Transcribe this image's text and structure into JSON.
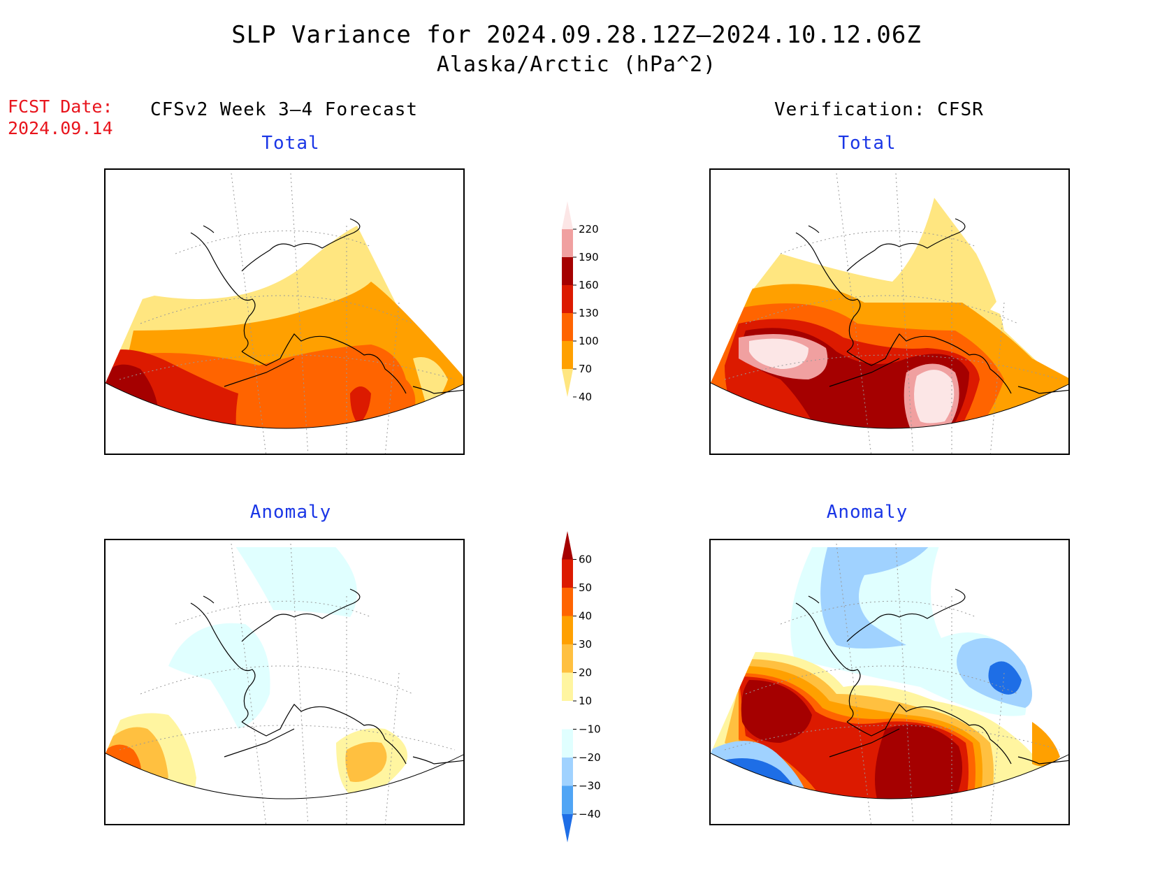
{
  "title": "SLP Variance for 2024.09.28.12Z–2024.10.12.06Z",
  "subtitle": "Alaska/Arctic (hPa^2)",
  "fcst_label": "FCST Date:",
  "fcst_date": "2024.09.14",
  "left_header": "CFSv2 Week 3–4 Forecast",
  "right_header": "Verification: CFSR",
  "panels": {
    "fcst_total": "Total",
    "verif_total": "Total",
    "fcst_anom": "Anomaly",
    "verif_anom": "Anomaly"
  },
  "total_scale": {
    "labels": [
      "220",
      "190",
      "160",
      "130",
      "100",
      "70",
      "40"
    ],
    "colors": [
      "#fce6e6",
      "#f0a0a0",
      "#a50000",
      "#dc1a00",
      "#ff6400",
      "#ffa000",
      "#ffe680"
    ]
  },
  "anomaly_scale": {
    "labels": [
      "60",
      "50",
      "40",
      "30",
      "20",
      "10",
      "−10",
      "−20",
      "−30",
      "−40"
    ],
    "colors": [
      "#a50000",
      "#dc1a00",
      "#ff6400",
      "#ffa000",
      "#ffc040",
      "#fff5a0",
      "#ffffff",
      "#e0ffff",
      "#a0d2ff",
      "#50a5f5",
      "#1e6ee6"
    ]
  },
  "colors": {
    "title_blue": "#1a36e6",
    "fcst_red": "#e8141c"
  }
}
